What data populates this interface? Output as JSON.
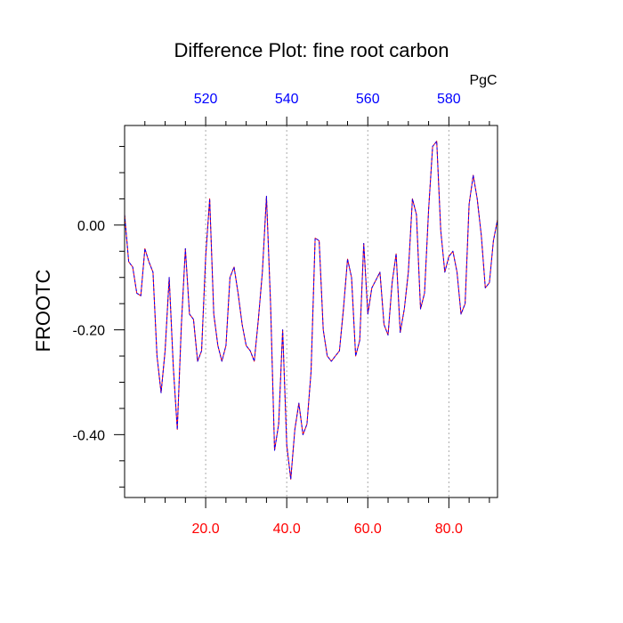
{
  "chart_data": {
    "type": "line",
    "title": "Difference Plot: fine root carbon",
    "ylabel": "FROOTC",
    "xlabel": "",
    "top_axis_units": "PgC",
    "xlim": [
      0,
      92
    ],
    "ylim": [
      -0.52,
      0.19
    ],
    "grid": "vertical dotted lines at major x ticks",
    "x_ticks": [
      20,
      40,
      60,
      80
    ],
    "x_tick_labels": [
      "20.0",
      "40.0",
      "60.0",
      "80.0"
    ],
    "x_tick_color": "#ff0000",
    "x_minor_ticks": [
      5,
      10,
      15,
      25,
      30,
      35,
      45,
      50,
      55,
      65,
      70,
      75,
      85,
      90
    ],
    "top_ticks": [
      20,
      40,
      60,
      80
    ],
    "top_tick_labels": [
      "520",
      "540",
      "560",
      "580"
    ],
    "top_tick_color": "#0000ff",
    "y_ticks": [
      0.0,
      -0.2,
      -0.4
    ],
    "y_tick_labels": [
      "0.00",
      "-0.20",
      "-0.40"
    ],
    "y_minor_ticks": [
      0.15,
      0.1,
      0.05,
      -0.05,
      -0.1,
      -0.15,
      -0.25,
      -0.3,
      -0.35,
      -0.45,
      -0.5
    ],
    "series": [
      {
        "color_primary": "#ff0000",
        "color_secondary": "#0000ff",
        "style": "dashed overlay",
        "x": [
          0,
          1,
          2,
          3,
          4,
          5,
          6,
          7,
          8,
          9,
          10,
          11,
          12,
          13,
          14,
          15,
          16,
          17,
          18,
          19,
          20,
          21,
          22,
          23,
          24,
          25,
          26,
          27,
          28,
          29,
          30,
          31,
          32,
          33,
          34,
          35,
          36,
          37,
          38,
          39,
          40,
          41,
          42,
          43,
          44,
          45,
          46,
          47,
          48,
          49,
          50,
          51,
          52,
          53,
          54,
          55,
          56,
          57,
          58,
          59,
          60,
          61,
          62,
          63,
          64,
          65,
          66,
          67,
          68,
          69,
          70,
          71,
          72,
          73,
          74,
          75,
          76,
          77,
          78,
          79,
          80,
          81,
          82,
          83,
          84,
          85,
          86,
          87,
          88,
          89,
          90,
          91,
          92
        ],
        "y": [
          0.02,
          -0.07,
          -0.08,
          -0.13,
          -0.135,
          -0.045,
          -0.07,
          -0.09,
          -0.25,
          -0.32,
          -0.24,
          -0.1,
          -0.27,
          -0.39,
          -0.19,
          -0.045,
          -0.17,
          -0.18,
          -0.26,
          -0.24,
          -0.06,
          0.05,
          -0.17,
          -0.23,
          -0.26,
          -0.23,
          -0.1,
          -0.08,
          -0.13,
          -0.19,
          -0.23,
          -0.24,
          -0.26,
          -0.18,
          -0.09,
          0.055,
          -0.15,
          -0.43,
          -0.38,
          -0.2,
          -0.42,
          -0.485,
          -0.39,
          -0.34,
          -0.4,
          -0.38,
          -0.28,
          -0.025,
          -0.03,
          -0.2,
          -0.25,
          -0.26,
          -0.25,
          -0.24,
          -0.16,
          -0.065,
          -0.1,
          -0.25,
          -0.22,
          -0.035,
          -0.17,
          -0.12,
          -0.105,
          -0.09,
          -0.19,
          -0.21,
          -0.11,
          -0.055,
          -0.205,
          -0.16,
          -0.09,
          0.05,
          0.02,
          -0.16,
          -0.13,
          0.03,
          0.15,
          0.16,
          -0.01,
          -0.09,
          -0.06,
          -0.05,
          -0.09,
          -0.17,
          -0.15,
          0.04,
          0.095,
          0.05,
          -0.02,
          -0.12,
          -0.11,
          -0.03,
          0.01
        ]
      }
    ]
  }
}
